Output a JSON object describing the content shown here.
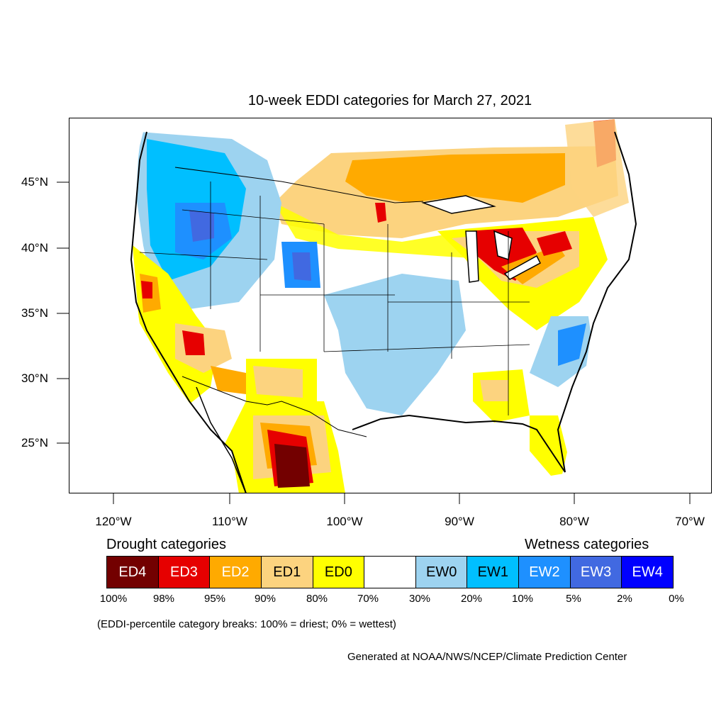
{
  "title": "10-week EDDI categories for March 27, 2021",
  "latitude_labels": [
    "45°N",
    "40°N",
    "35°N",
    "30°N",
    "25°N"
  ],
  "longitude_labels": [
    "120°W",
    "110°W",
    "100°W",
    "90°W",
    "80°W",
    "70°W"
  ],
  "legend": {
    "drought_heading": "Drought categories",
    "wetness_heading": "Wetness categories",
    "categories": [
      {
        "label": "ED4",
        "color": "#730000",
        "text_color": "#ffffff"
      },
      {
        "label": "ED3",
        "color": "#e60000",
        "text_color": "#ffffff"
      },
      {
        "label": "ED2",
        "color": "#ffaa00",
        "text_color": "#ffffff"
      },
      {
        "label": "ED1",
        "color": "#fcd37f",
        "text_color": "#000000"
      },
      {
        "label": "ED0",
        "color": "#ffff00",
        "text_color": "#000000"
      },
      {
        "label": "",
        "color": "#ffffff",
        "text_color": "#000000"
      },
      {
        "label": "EW0",
        "color": "#9dd3f0",
        "text_color": "#000000"
      },
      {
        "label": "EW1",
        "color": "#00bfff",
        "text_color": "#000000"
      },
      {
        "label": "EW2",
        "color": "#1e90ff",
        "text_color": "#ffffff"
      },
      {
        "label": "EW3",
        "color": "#4169e1",
        "text_color": "#ffffff"
      },
      {
        "label": "EW4",
        "color": "#0000ff",
        "text_color": "#ffffff"
      }
    ],
    "percentiles": [
      "100%",
      "98%",
      "95%",
      "90%",
      "80%",
      "70%",
      "30%",
      "20%",
      "10%",
      "5%",
      "2%",
      "0%"
    ]
  },
  "note": "(EDDI-percentile category breaks: 100% = driest; 0% = wettest)",
  "credit": "Generated at NOAA/NWS/NCEP/Climate Prediction Center"
}
